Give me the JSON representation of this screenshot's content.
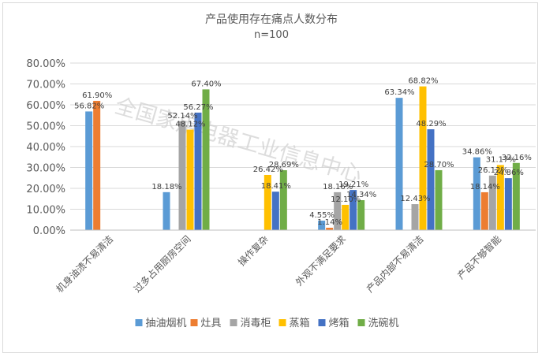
{
  "chart_data": {
    "type": "bar",
    "title": "产品使用存在痛点人数分布",
    "subtitle": "n=100",
    "watermark": "全国家用电器工业信息中心",
    "categories": [
      "机身油渍不易清洁",
      "过多占用厨房空间",
      "操作复杂",
      "外观不满足要求",
      "产品内部不易清洁",
      "产品不够智能"
    ],
    "series": [
      {
        "name": "抽油烟机",
        "color": "#5B9BD5",
        "values": [
          56.82,
          18.18,
          null,
          4.55,
          63.34,
          34.86
        ],
        "labels": [
          "56.82%",
          "18.18%",
          "",
          "4.55%",
          "63.34%",
          "34.86%"
        ]
      },
      {
        "name": "灶具",
        "color": "#ED7D31",
        "values": [
          61.9,
          null,
          null,
          1.14,
          null,
          18.14
        ],
        "labels": [
          "61.90%",
          "",
          "",
          "1.14%",
          "",
          "18.14%"
        ]
      },
      {
        "name": "消毒柜",
        "color": "#A5A5A5",
        "values": [
          null,
          52.14,
          null,
          18.16,
          12.43,
          26.12
        ],
        "labels": [
          "",
          "52.14%",
          "",
          "18.16%",
          "12.43%",
          "26.12%"
        ]
      },
      {
        "name": "蒸箱",
        "color": "#FFC000",
        "values": [
          null,
          48.12,
          26.42,
          12.1,
          68.82,
          31.17
        ],
        "labels": [
          "",
          "48.12%",
          "26.42%",
          "12.10%",
          "68.82%",
          "31.17%"
        ]
      },
      {
        "name": "烤箱",
        "color": "#4472C4",
        "values": [
          null,
          56.27,
          18.41,
          19.21,
          48.29,
          24.86
        ],
        "labels": [
          "",
          "56.27%",
          "18.41%",
          "19.21%",
          "48.29%",
          "24.86%"
        ]
      },
      {
        "name": "洗碗机",
        "color": "#70AD47",
        "values": [
          null,
          67.4,
          28.69,
          14.34,
          28.7,
          32.16
        ],
        "labels": [
          "",
          "67.40%",
          "28.69%",
          "14.34%",
          "28.70%",
          "32.16%"
        ]
      }
    ],
    "ylim": [
      0,
      80
    ],
    "ytick_labels": [
      "0.00%",
      "10.00%",
      "20.00%",
      "30.00%",
      "40.00%",
      "50.00%",
      "60.00%",
      "70.00%",
      "80.00%"
    ],
    "grid": true,
    "legend_position": "bottom"
  }
}
